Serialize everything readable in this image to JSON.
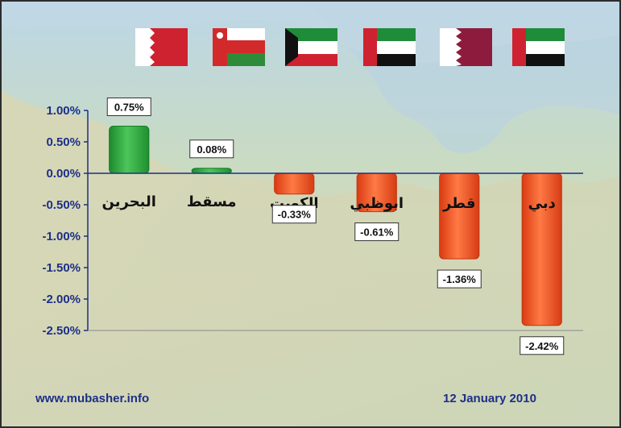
{
  "chart_data": {
    "type": "bar",
    "categories": [
      "البحرين",
      "مسقط",
      "الكويت",
      "ابوظبي",
      "قطر",
      "دبي"
    ],
    "values": [
      0.75,
      0.08,
      -0.33,
      -0.61,
      -1.36,
      -2.42
    ],
    "data_labels": [
      "0.75%",
      "0.08%",
      "-0.33%",
      "-0.61%",
      "-1.36%",
      "-2.42%"
    ],
    "y_ticks": [
      "1.00%",
      "0.50%",
      "0.00%",
      "-0.50%",
      "-1.00%",
      "-1.50%",
      "-2.00%",
      "-2.50%"
    ],
    "ylim": [
      -2.5,
      1.0
    ],
    "grid": false,
    "title": "",
    "xlabel": "",
    "ylabel": ""
  },
  "flags": [
    "bahrain-flag",
    "oman-flag",
    "kuwait-flag",
    "uae-flag",
    "qatar-flag",
    "uae-flag"
  ],
  "footer": {
    "website": "www.mubasher.info",
    "date": "12 January 2010"
  },
  "colors": {
    "positive": "#22a335",
    "negative": "#f2481a",
    "axis": "#1d2f86"
  }
}
